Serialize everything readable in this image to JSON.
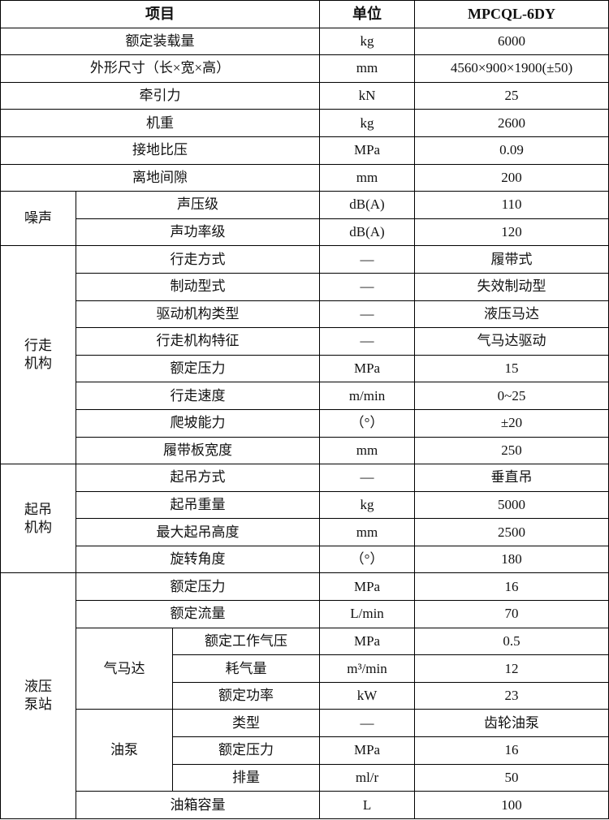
{
  "header": {
    "item": "项目",
    "unit": "单位",
    "value": "MPCQL-6DY"
  },
  "general": [
    {
      "item": "额定装载量",
      "unit": "kg",
      "value": "6000"
    },
    {
      "item": "外形尺寸（长×宽×高）",
      "unit": "mm",
      "value": "4560×900×1900(±50)"
    },
    {
      "item": "牵引力",
      "unit": "kN",
      "value": "25"
    },
    {
      "item": "机重",
      "unit": "kg",
      "value": "2600"
    },
    {
      "item": "接地比压",
      "unit": "MPa",
      "value": "0.09"
    },
    {
      "item": "离地间隙",
      "unit": "mm",
      "value": "200"
    }
  ],
  "noise": {
    "label": "噪声",
    "rows": [
      {
        "item": "声压级",
        "unit": "dB(A)",
        "value": "110"
      },
      {
        "item": "声功率级",
        "unit": "dB(A)",
        "value": "120"
      }
    ]
  },
  "travel": {
    "label": "行走\n机构",
    "rows": [
      {
        "item": "行走方式",
        "unit": "—",
        "value": "履带式"
      },
      {
        "item": "制动型式",
        "unit": "—",
        "value": "失效制动型"
      },
      {
        "item": "驱动机构类型",
        "unit": "—",
        "value": "液压马达"
      },
      {
        "item": "行走机构特征",
        "unit": "—",
        "value": "气马达驱动"
      },
      {
        "item": "额定压力",
        "unit": "MPa",
        "value": "15"
      },
      {
        "item": "行走速度",
        "unit": "m/min",
        "value": "0~25"
      },
      {
        "item": "爬坡能力",
        "unit": "（°）",
        "value": "±20"
      },
      {
        "item": "履带板宽度",
        "unit": "mm",
        "value": "250"
      }
    ]
  },
  "lifting": {
    "label": "起吊\n机构",
    "rows": [
      {
        "item": "起吊方式",
        "unit": "—",
        "value": "垂直吊"
      },
      {
        "item": "起吊重量",
        "unit": "kg",
        "value": "5000"
      },
      {
        "item": "最大起吊高度",
        "unit": "mm",
        "value": "2500"
      },
      {
        "item": "旋转角度",
        "unit": "（°）",
        "value": "180"
      }
    ]
  },
  "pump": {
    "label": "液压\n泵站",
    "rows": [
      {
        "item": "额定压力",
        "unit": "MPa",
        "value": "16"
      },
      {
        "item": "额定流量",
        "unit": "L/min",
        "value": "70"
      }
    ],
    "air_motor": {
      "label": "气马达",
      "rows": [
        {
          "item": "额定工作气压",
          "unit": "MPa",
          "value": "0.5"
        },
        {
          "item": "耗气量",
          "unit": "m³/min",
          "value": "12"
        },
        {
          "item": "额定功率",
          "unit": "kW",
          "value": "23"
        }
      ]
    },
    "oil_pump": {
      "label": "油泵",
      "rows": [
        {
          "item": "类型",
          "unit": "—",
          "value": "齿轮油泵"
        },
        {
          "item": "额定压力",
          "unit": "MPa",
          "value": "16"
        },
        {
          "item": "排量",
          "unit": "ml/r",
          "value": "50"
        }
      ]
    },
    "tank": {
      "item": "油箱容量",
      "unit": "L",
      "value": "100"
    }
  }
}
